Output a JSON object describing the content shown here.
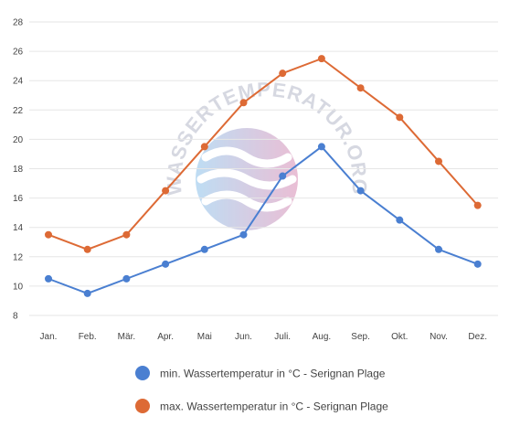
{
  "chart_data": {
    "type": "line",
    "categories": [
      "Jan.",
      "Feb.",
      "Mär.",
      "Apr.",
      "Mai",
      "Jun.",
      "Juli.",
      "Aug.",
      "Sep.",
      "Okt.",
      "Nov.",
      "Dez."
    ],
    "series": [
      {
        "name": "min. Wassertemperatur in °C - Serignan Plage",
        "color": "#4a7fd1",
        "values": [
          10.5,
          9.5,
          10.5,
          11.5,
          12.5,
          13.5,
          17.5,
          19.5,
          16.5,
          14.5,
          12.5,
          11.5
        ]
      },
      {
        "name": "max. Wassertemperatur in °C - Serignan Plage",
        "color": "#dd6a35",
        "values": [
          13.5,
          12.5,
          13.5,
          16.5,
          19.5,
          22.5,
          24.5,
          25.5,
          23.5,
          21.5,
          18.5,
          15.5
        ]
      }
    ],
    "y_ticks": [
      8,
      10,
      12,
      14,
      16,
      18,
      20,
      22,
      24,
      26,
      28
    ],
    "ylim": [
      8,
      28
    ],
    "grid": true,
    "legend_position": "bottom"
  },
  "watermark": {
    "text": "WASSERTEMPERATUR.ORG",
    "gradient_colors": [
      "#a9d2f0",
      "#e3a9c7"
    ]
  }
}
